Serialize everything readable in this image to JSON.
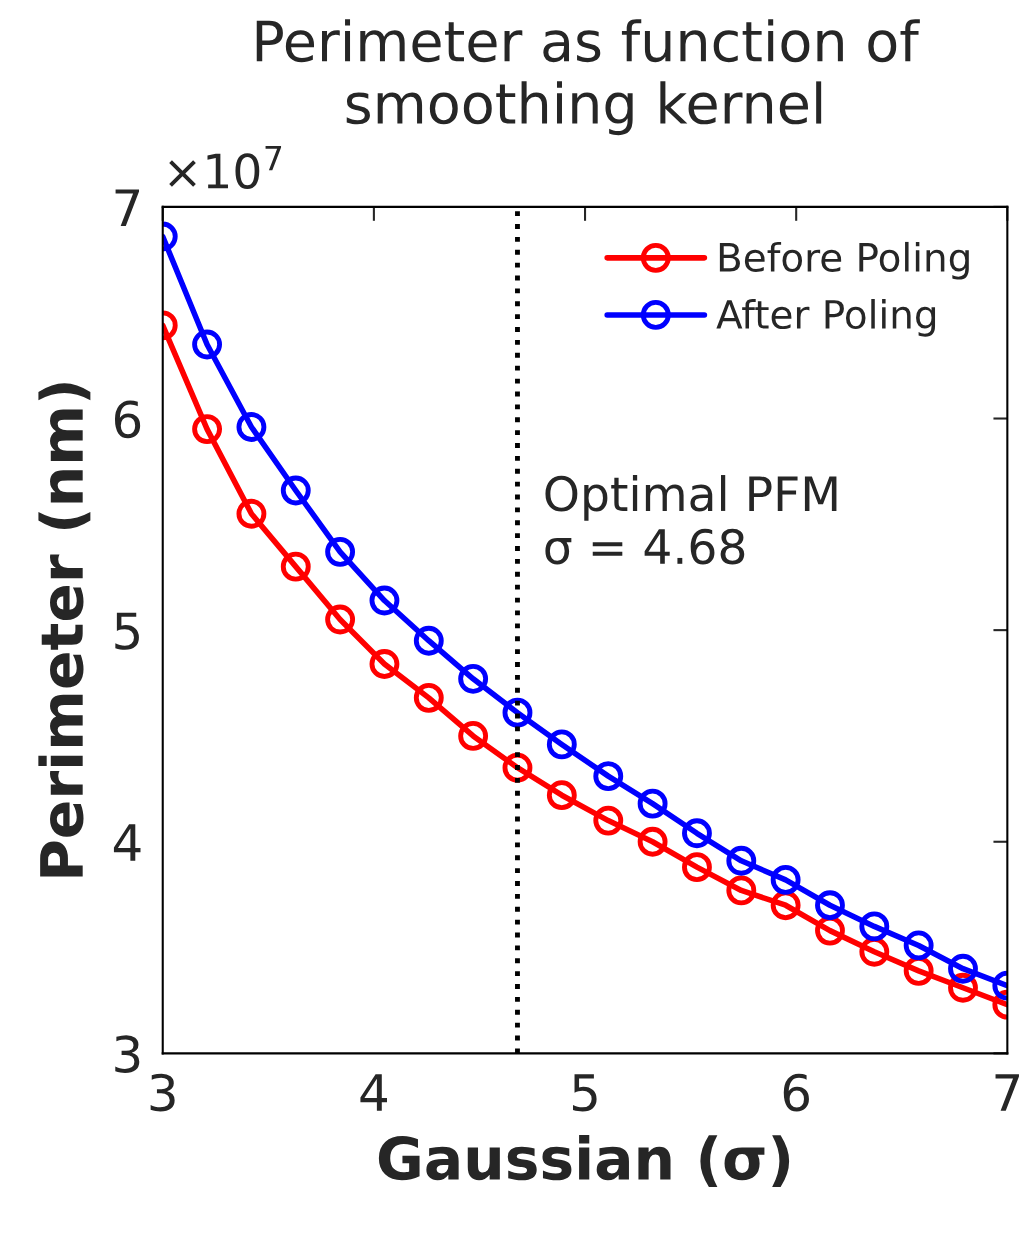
{
  "chart_data": {
    "type": "line",
    "title": "Perimeter as function of\nsmoothing kernel",
    "xlabel": "Gaussian (σ)",
    "ylabel": "Perimeter (nm)",
    "x": [
      3,
      3.21,
      3.42,
      3.63,
      3.84,
      4.05,
      4.26,
      4.47,
      4.68,
      4.89,
      5.11,
      5.32,
      5.53,
      5.74,
      5.95,
      6.16,
      6.37,
      6.58,
      6.79,
      7
    ],
    "series": [
      {
        "name": "Before Poling",
        "color": "#ff0000",
        "values": [
          6.44,
          5.95,
          5.55,
          5.3,
          5.05,
          4.84,
          4.68,
          4.5,
          4.35,
          4.22,
          4.1,
          4.0,
          3.88,
          3.77,
          3.7,
          3.58,
          3.48,
          3.39,
          3.31,
          3.23
        ]
      },
      {
        "name": "After Poling",
        "color": "#0000ff",
        "values": [
          6.86,
          6.35,
          5.96,
          5.66,
          5.37,
          5.14,
          4.95,
          4.77,
          4.61,
          4.46,
          4.31,
          4.18,
          4.04,
          3.91,
          3.82,
          3.7,
          3.6,
          3.51,
          3.4,
          3.32
        ]
      }
    ],
    "xlim": [
      3,
      7
    ],
    "xticks": [
      3,
      4,
      5,
      6,
      7
    ],
    "ylim": [
      3,
      7
    ],
    "yticks": [
      3,
      4,
      5,
      6,
      7
    ],
    "annotations": [
      "×10$^{7}$"
    ],
    "ref_lines": [
      {
        "axis": "x",
        "value": 4.68,
        "label": "Optimal PFM\nσ = 4.68",
        "color": "#000000",
        "line_style": "dotted"
      }
    ],
    "marker": "circle",
    "line_style": "solid",
    "grid": false,
    "legend": "top right"
  }
}
